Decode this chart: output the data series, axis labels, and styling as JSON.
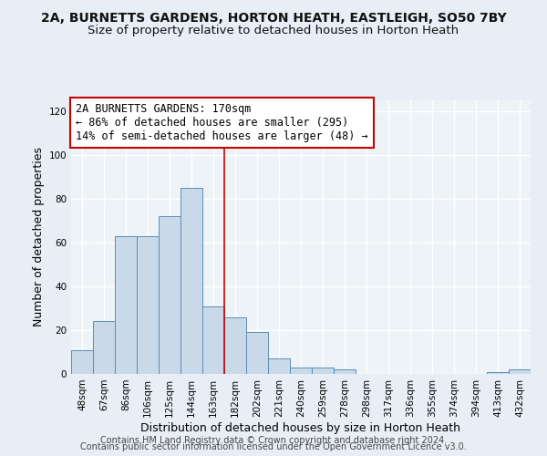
{
  "title": "2A, BURNETTS GARDENS, HORTON HEATH, EASTLEIGH, SO50 7BY",
  "subtitle": "Size of property relative to detached houses in Horton Heath",
  "xlabel": "Distribution of detached houses by size in Horton Heath",
  "ylabel": "Number of detached properties",
  "categories": [
    "48sqm",
    "67sqm",
    "86sqm",
    "106sqm",
    "125sqm",
    "144sqm",
    "163sqm",
    "182sqm",
    "202sqm",
    "221sqm",
    "240sqm",
    "259sqm",
    "278sqm",
    "298sqm",
    "317sqm",
    "336sqm",
    "355sqm",
    "374sqm",
    "394sqm",
    "413sqm",
    "432sqm"
  ],
  "values": [
    11,
    24,
    63,
    63,
    72,
    85,
    31,
    26,
    19,
    7,
    3,
    3,
    2,
    0,
    0,
    0,
    0,
    0,
    0,
    1,
    2
  ],
  "bar_color": "#c9d9e8",
  "bar_edge_color": "#5b8db8",
  "subject_line_index": 7,
  "subject_line_color": "#cc0000",
  "annotation_line1": "2A BURNETTS GARDENS: 170sqm",
  "annotation_line2": "← 86% of detached houses are smaller (295)",
  "annotation_line3": "14% of semi-detached houses are larger (48) →",
  "annotation_box_color": "#ffffff",
  "annotation_box_edge_color": "#cc0000",
  "ylim": [
    0,
    125
  ],
  "yticks": [
    0,
    20,
    40,
    60,
    80,
    100,
    120
  ],
  "footer_line1": "Contains HM Land Registry data © Crown copyright and database right 2024.",
  "footer_line2": "Contains public sector information licensed under the Open Government Licence v3.0.",
  "bg_color": "#e8eef5",
  "plot_bg_color": "#eef3f8",
  "grid_color": "#ffffff",
  "title_fontsize": 10,
  "subtitle_fontsize": 9.5,
  "axis_label_fontsize": 9,
  "tick_fontsize": 7.5,
  "annotation_fontsize": 8.5,
  "footer_fontsize": 7
}
